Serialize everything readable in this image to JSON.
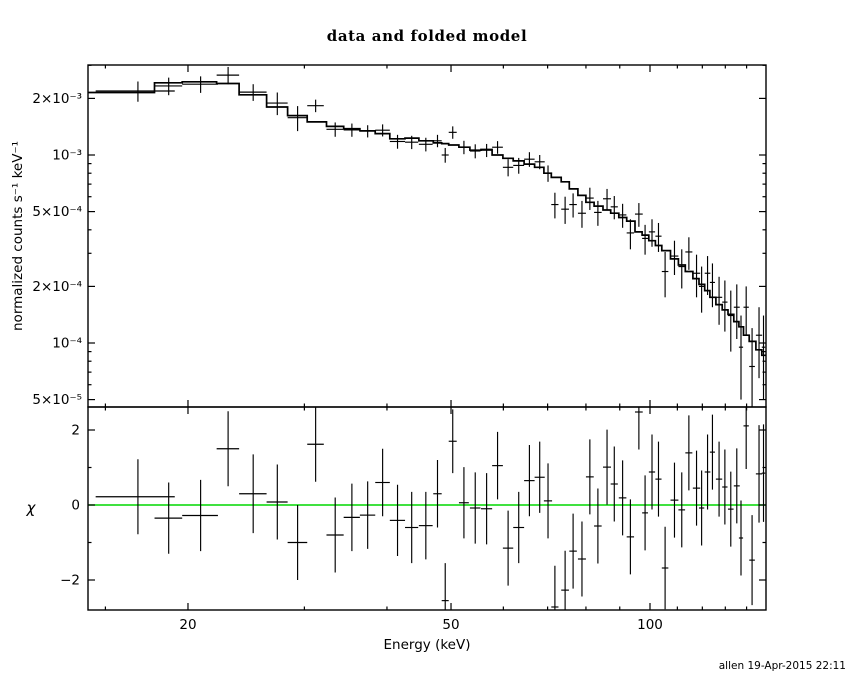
{
  "meta": {
    "footer": "allen 19-Apr-2015 22:11"
  },
  "colors": {
    "foreground": "#000000",
    "data": "#000000",
    "model": "#000000",
    "zero_line": "#00d700",
    "background": "#ffffff"
  },
  "chart_data": [
    {
      "type": "scatter",
      "panel": "top",
      "title": "data and folded model",
      "ylabel": "normalized counts s⁻¹ keV⁻¹",
      "xlabel": "Energy (keV)",
      "xscale": "log",
      "yscale": "log",
      "xlim": [
        14.1,
        150
      ],
      "ylim": [
        4.55e-05,
        0.00301
      ],
      "grid": false,
      "legend": "none",
      "series": [
        {
          "name": "data",
          "marker": "plain-cross-error-bars",
          "color": "#000000"
        },
        {
          "name": "folded model",
          "marker": "step-histogram-line",
          "color": "#000000"
        }
      ],
      "xticks": {
        "major": [
          {
            "v": 20,
            "label": "20"
          },
          {
            "v": 50,
            "label": "50"
          },
          {
            "v": 100,
            "label": "100"
          }
        ],
        "minor": [
          15,
          30,
          40,
          60,
          70,
          80,
          90,
          110,
          120,
          130,
          140
        ]
      },
      "yticks": {
        "major": [
          {
            "v": 0.002,
            "label": "2×10⁻³"
          },
          {
            "v": 0.001,
            "label": "10⁻³"
          },
          {
            "v": 0.0005,
            "label": "5×10⁻⁴"
          },
          {
            "v": 0.0002,
            "label": "2×10⁻⁴"
          },
          {
            "v": 0.0001,
            "label": "10⁻⁴"
          },
          {
            "v": 5e-05,
            "label": "5×10⁻⁵"
          }
        ],
        "minor": [
          0.003,
          0.0009,
          0.0008,
          0.0007,
          0.0006,
          0.0004,
          0.0003,
          9e-05,
          8e-05,
          7e-05,
          6e-05
        ]
      },
      "bins_format": [
        "energy_keV",
        "energy_half_width_keV",
        "data_counts",
        "data_err",
        "model_counts"
      ],
      "bins": [
        [
          16.8,
          2.3,
          0.00219,
          0.00027,
          0.00215
        ],
        [
          18.7,
          0.9,
          0.00233,
          0.00025,
          0.00242
        ],
        [
          20.9,
          1.3,
          0.00238,
          0.00024,
          0.00245
        ],
        [
          23.0,
          0.9,
          0.00266,
          0.00028,
          0.0024
        ],
        [
          25.1,
          1.2,
          0.00216,
          0.00022,
          0.00209
        ],
        [
          27.3,
          1.0,
          0.00189,
          0.00026,
          0.0018
        ],
        [
          29.3,
          1.0,
          0.00158,
          0.00024,
          0.00162
        ],
        [
          31.2,
          0.9,
          0.00183,
          0.00014,
          0.0015
        ],
        [
          33.4,
          1.0,
          0.00137,
          0.00012,
          0.00142
        ],
        [
          35.4,
          1.0,
          0.00136,
          0.00011,
          0.00138
        ],
        [
          37.4,
          1.0,
          0.00134,
          0.0001,
          0.001345
        ],
        [
          39.4,
          1.0,
          0.001355,
          0.0001,
          0.0013
        ],
        [
          41.5,
          1.1,
          0.00118,
          0.0001,
          0.00122
        ],
        [
          43.6,
          1.0,
          0.00117,
          9.5e-05,
          0.00123
        ],
        [
          45.8,
          1.1,
          0.00114,
          9.5e-05,
          0.00119
        ],
        [
          47.7,
          0.7,
          0.00119,
          9e-05,
          0.00116
        ],
        [
          49.0,
          0.6,
          0.001,
          9e-05,
          0.00115
        ],
        [
          50.3,
          0.7,
          0.00132,
          0.0001,
          0.00113
        ],
        [
          52.3,
          0.9,
          0.0011,
          9e-05,
          0.0011
        ],
        [
          54.4,
          1.0,
          0.00105,
          9e-05,
          0.00106
        ],
        [
          56.6,
          1.1,
          0.00106,
          8.5e-05,
          0.00107
        ],
        [
          58.8,
          1.1,
          0.0011,
          8.5e-05,
          0.001
        ],
        [
          61.0,
          1.1,
          0.00086,
          9e-05,
          0.00096
        ],
        [
          63.3,
          1.2,
          0.00088,
          8.5e-05,
          0.00093
        ],
        [
          65.7,
          1.2,
          0.00095,
          8.5e-05,
          0.000895
        ],
        [
          68.1,
          1.2,
          0.00092,
          8e-05,
          0.00086
        ],
        [
          70.1,
          1.0,
          0.0008,
          8e-05,
          0.0008
        ],
        [
          71.8,
          0.9,
          0.000545,
          8.5e-05,
          0.00076
        ],
        [
          74.4,
          1.0,
          0.000515,
          8.5e-05,
          0.00072
        ],
        [
          76.5,
          1.0,
          0.000545,
          8e-05,
          0.00066
        ],
        [
          78.9,
          1.1,
          0.00049,
          8e-05,
          0.00061
        ],
        [
          81.1,
          1.1,
          0.00059,
          8e-05,
          0.00056
        ],
        [
          83.4,
          1.1,
          0.000495,
          7.5e-05,
          0.000535
        ],
        [
          86.1,
          1.2,
          0.000585,
          7.5e-05,
          0.00051
        ],
        [
          88.3,
          1.1,
          0.00053,
          7.5e-05,
          0.00049
        ],
        [
          90.9,
          1.2,
          0.00048,
          7e-05,
          0.000465
        ],
        [
          93.4,
          1.2,
          0.000385,
          7e-05,
          0.000445
        ],
        [
          96.2,
          1.3,
          0.000485,
          7e-05,
          0.00039
        ],
        [
          98.3,
          1.0,
          0.00036,
          6.5e-05,
          0.000375
        ],
        [
          100.7,
          1.1,
          0.00039,
          6.5e-05,
          0.00035
        ],
        [
          103.0,
          1.1,
          0.00037,
          6.5e-05,
          0.00033
        ],
        [
          105.4,
          1.2,
          0.00024,
          6.5e-05,
          0.00031
        ],
        [
          108.9,
          1.5,
          0.00029,
          6e-05,
          0.00028
        ],
        [
          111.7,
          1.3,
          0.000255,
          6e-05,
          0.00026
        ],
        [
          114.5,
          1.4,
          0.000305,
          6e-05,
          0.00024
        ],
        [
          117.6,
          1.5,
          0.000235,
          6e-05,
          0.00022
        ],
        [
          119.7,
          1.1,
          0.0002,
          5.5e-05,
          0.000205
        ],
        [
          122.2,
          1.2,
          0.000235,
          5.5e-05,
          0.00019
        ],
        [
          124.3,
          1.1,
          0.00021,
          5.5e-05,
          0.000175
        ],
        [
          127.2,
          1.4,
          0.000175,
          5e-05,
          0.00016
        ],
        [
          129.8,
          1.2,
          0.000165,
          5e-05,
          0.00015
        ],
        [
          132.5,
          1.3,
          0.00014,
          5e-05,
          0.000142
        ],
        [
          135.3,
          1.4,
          0.000155,
          5e-05,
          0.00013
        ],
        [
          137.3,
          1.0,
          9.5e-05,
          4.5e-05,
          0.000122
        ],
        [
          139.8,
          1.3,
          0.000155,
          4.5e-05,
          0.00011
        ],
        [
          142.7,
          1.4,
          7.5e-05,
          4.5e-05,
          0.000102
        ],
        [
          146.2,
          1.6,
          0.00011,
          4.5e-05,
          9.2e-05
        ],
        [
          148.5,
          0.9,
          9.5e-05,
          4.5e-05,
          8.6e-05
        ]
      ]
    },
    {
      "type": "scatter",
      "panel": "bottom",
      "ylabel": "χ",
      "xlabel": "Energy (keV)",
      "xscale": "log",
      "yscale": "linear",
      "xlim": [
        14.1,
        150
      ],
      "ylim": [
        -2.8,
        2.61
      ],
      "grid": false,
      "zero_line_value": 0,
      "yticks": {
        "major": [
          {
            "v": 2,
            "label": "2"
          },
          {
            "v": 0,
            "label": "0"
          },
          {
            "v": -2,
            "label": "−2"
          }
        ],
        "minor": [
          1,
          -1
        ]
      },
      "points_format": [
        "energy_keV",
        "chi",
        "chi_err"
      ],
      "points": [
        [
          16.8,
          0.22,
          1.0
        ],
        [
          18.7,
          -0.35,
          0.95
        ],
        [
          20.9,
          -0.28,
          0.95
        ],
        [
          23.0,
          1.5,
          1.0
        ],
        [
          25.1,
          0.3,
          1.05
        ],
        [
          27.3,
          0.08,
          1.0
        ],
        [
          29.3,
          -1.0,
          1.0
        ],
        [
          31.2,
          1.62,
          1.0
        ],
        [
          33.4,
          -0.8,
          1.0
        ],
        [
          35.4,
          -0.33,
          0.9
        ],
        [
          37.4,
          -0.27,
          0.9
        ],
        [
          39.4,
          0.6,
          0.9
        ],
        [
          41.5,
          -0.41,
          0.95
        ],
        [
          43.6,
          -0.6,
          0.95
        ],
        [
          45.8,
          -0.55,
          0.9
        ],
        [
          47.7,
          0.3,
          0.9
        ],
        [
          49.0,
          -2.55,
          1.0
        ],
        [
          50.3,
          1.7,
          0.85
        ],
        [
          52.3,
          0.06,
          0.95
        ],
        [
          54.4,
          -0.08,
          0.95
        ],
        [
          56.6,
          -0.1,
          0.95
        ],
        [
          58.8,
          1.05,
          0.9
        ],
        [
          61.0,
          -1.15,
          1.0
        ],
        [
          63.3,
          -0.6,
          0.95
        ],
        [
          65.7,
          0.65,
          0.95
        ],
        [
          68.1,
          0.74,
          0.95
        ],
        [
          70.1,
          0.11,
          1.0
        ],
        [
          71.8,
          -2.72,
          1.1
        ],
        [
          74.4,
          -2.27,
          1.05
        ],
        [
          76.5,
          -1.23,
          1.0
        ],
        [
          78.9,
          -1.44,
          1.0
        ],
        [
          81.1,
          0.75,
          1.0
        ],
        [
          83.4,
          -0.56,
          1.0
        ],
        [
          86.1,
          1.01,
          1.0
        ],
        [
          88.3,
          0.56,
          1.0
        ],
        [
          90.9,
          0.19,
          1.0
        ],
        [
          93.4,
          -0.85,
          1.0
        ],
        [
          96.2,
          2.48,
          1.0
        ],
        [
          98.3,
          -0.21,
          1.0
        ],
        [
          100.7,
          0.88,
          1.0
        ],
        [
          103.0,
          0.69,
          1.0
        ],
        [
          105.4,
          -1.68,
          1.1
        ],
        [
          108.9,
          0.13,
          1.0
        ],
        [
          111.7,
          -0.13,
          1.0
        ],
        [
          114.5,
          1.39,
          1.0
        ],
        [
          117.6,
          0.45,
          1.0
        ],
        [
          119.7,
          -0.08,
          1.0
        ],
        [
          122.2,
          0.88,
          1.0
        ],
        [
          124.3,
          1.41,
          1.0
        ],
        [
          127.2,
          0.69,
          1.0
        ],
        [
          129.8,
          0.48,
          1.0
        ],
        [
          132.5,
          -0.11,
          1.0
        ],
        [
          135.3,
          0.51,
          1.0
        ],
        [
          137.3,
          -0.88,
          1.0
        ],
        [
          139.8,
          2.11,
          1.15
        ],
        [
          142.7,
          -1.47,
          1.2
        ],
        [
          146.2,
          0.83,
          1.3
        ],
        [
          148.5,
          0.85,
          1.3
        ]
      ]
    }
  ]
}
